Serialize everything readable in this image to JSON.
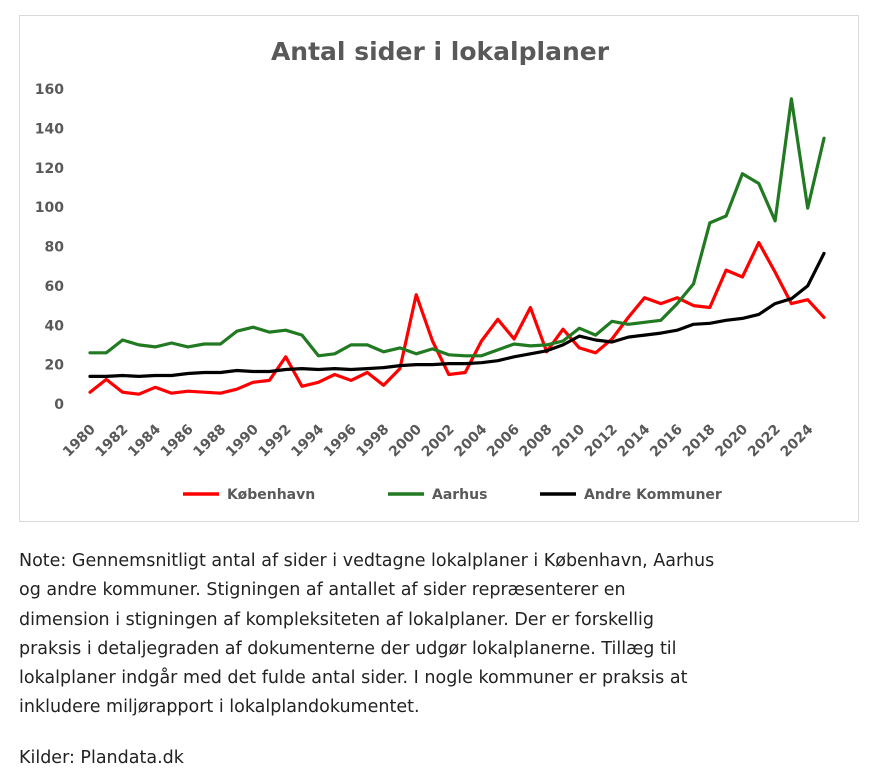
{
  "chart_data": {
    "type": "line",
    "title": "Antal sider i lokalplaner",
    "xlabel": "",
    "ylabel": "",
    "ylim": [
      0,
      160
    ],
    "yticks": [
      0,
      20,
      40,
      60,
      80,
      100,
      120,
      140,
      160
    ],
    "xticks": [
      "1980",
      "1982",
      "1984",
      "1986",
      "1988",
      "1990",
      "1992",
      "1994",
      "1996",
      "1998",
      "2000",
      "2002",
      "2004",
      "2006",
      "2008",
      "2010",
      "2012",
      "2014",
      "2016",
      "2018",
      "2020",
      "2022",
      "2024"
    ],
    "x": [
      1980,
      1981,
      1982,
      1983,
      1984,
      1985,
      1986,
      1987,
      1988,
      1989,
      1990,
      1991,
      1992,
      1993,
      1994,
      1995,
      1996,
      1997,
      1998,
      1999,
      2000,
      2001,
      2002,
      2003,
      2004,
      2005,
      2006,
      2007,
      2008,
      2009,
      2010,
      2011,
      2012,
      2013,
      2014,
      2015,
      2016,
      2017,
      2018,
      2019,
      2020,
      2021,
      2022,
      2023,
      2024,
      2025
    ],
    "grid": false,
    "legend_position": "bottom",
    "series": [
      {
        "name": "København",
        "color": "#ff0000",
        "values": [
          6,
          12.5,
          6,
          5,
          8.5,
          5.5,
          6.5,
          6,
          5.5,
          7.5,
          11,
          12,
          24,
          9,
          11,
          15,
          12,
          16,
          9.5,
          18,
          55.5,
          32,
          15,
          16,
          32,
          43,
          33,
          49,
          26.5,
          38,
          28.5,
          26,
          33,
          44,
          54,
          51,
          54,
          50,
          49,
          68,
          64.5,
          82,
          67,
          51,
          53,
          44
        ]
      },
      {
        "name": "Aarhus",
        "color": "#217a21",
        "values": [
          26,
          26,
          32.5,
          30,
          29,
          31,
          29,
          30.5,
          30.5,
          37,
          39,
          36.5,
          37.5,
          35,
          24.5,
          25.5,
          30,
          30,
          26.5,
          28.5,
          25.5,
          28,
          25,
          24.5,
          24.5,
          27.5,
          30.5,
          29.5,
          30,
          32,
          38.5,
          35,
          42,
          40.5,
          41.5,
          42.5,
          51,
          61,
          92,
          95.5,
          117,
          112,
          93,
          155,
          99.5,
          135
        ]
      },
      {
        "name": "Andre Kommuner",
        "color": "#000000",
        "values": [
          14,
          14,
          14.5,
          14,
          14.5,
          14.5,
          15.5,
          16,
          16,
          17,
          16.5,
          16.5,
          17.5,
          18,
          17.5,
          18,
          17.5,
          18,
          18.5,
          19.5,
          20,
          20,
          20.5,
          20.5,
          21,
          22,
          24,
          25.5,
          27,
          30,
          34.5,
          32.5,
          31.5,
          34,
          35,
          36,
          37.5,
          40.5,
          41,
          42.5,
          43.5,
          45.5,
          51,
          53.5,
          60,
          76.5
        ]
      }
    ]
  },
  "note": {
    "text": "Note: Gennemsnitligt antal af sider i vedtagne lokalplaner i København, Aarhus og andre kommuner. Stigningen af antallet af sider repræsenterer en dimension i stigningen af kompleksiteten af lokalplaner. Der er forskellig praksis i detaljegraden af dokumenterne der udgør lokalplanerne. Tillæg til lokalplaner indgår med det fulde antal sider. I nogle kommuner er praksis at inkludere miljørapport i lokalplandokumentet.",
    "source": "Kilder: Plandata.dk"
  }
}
